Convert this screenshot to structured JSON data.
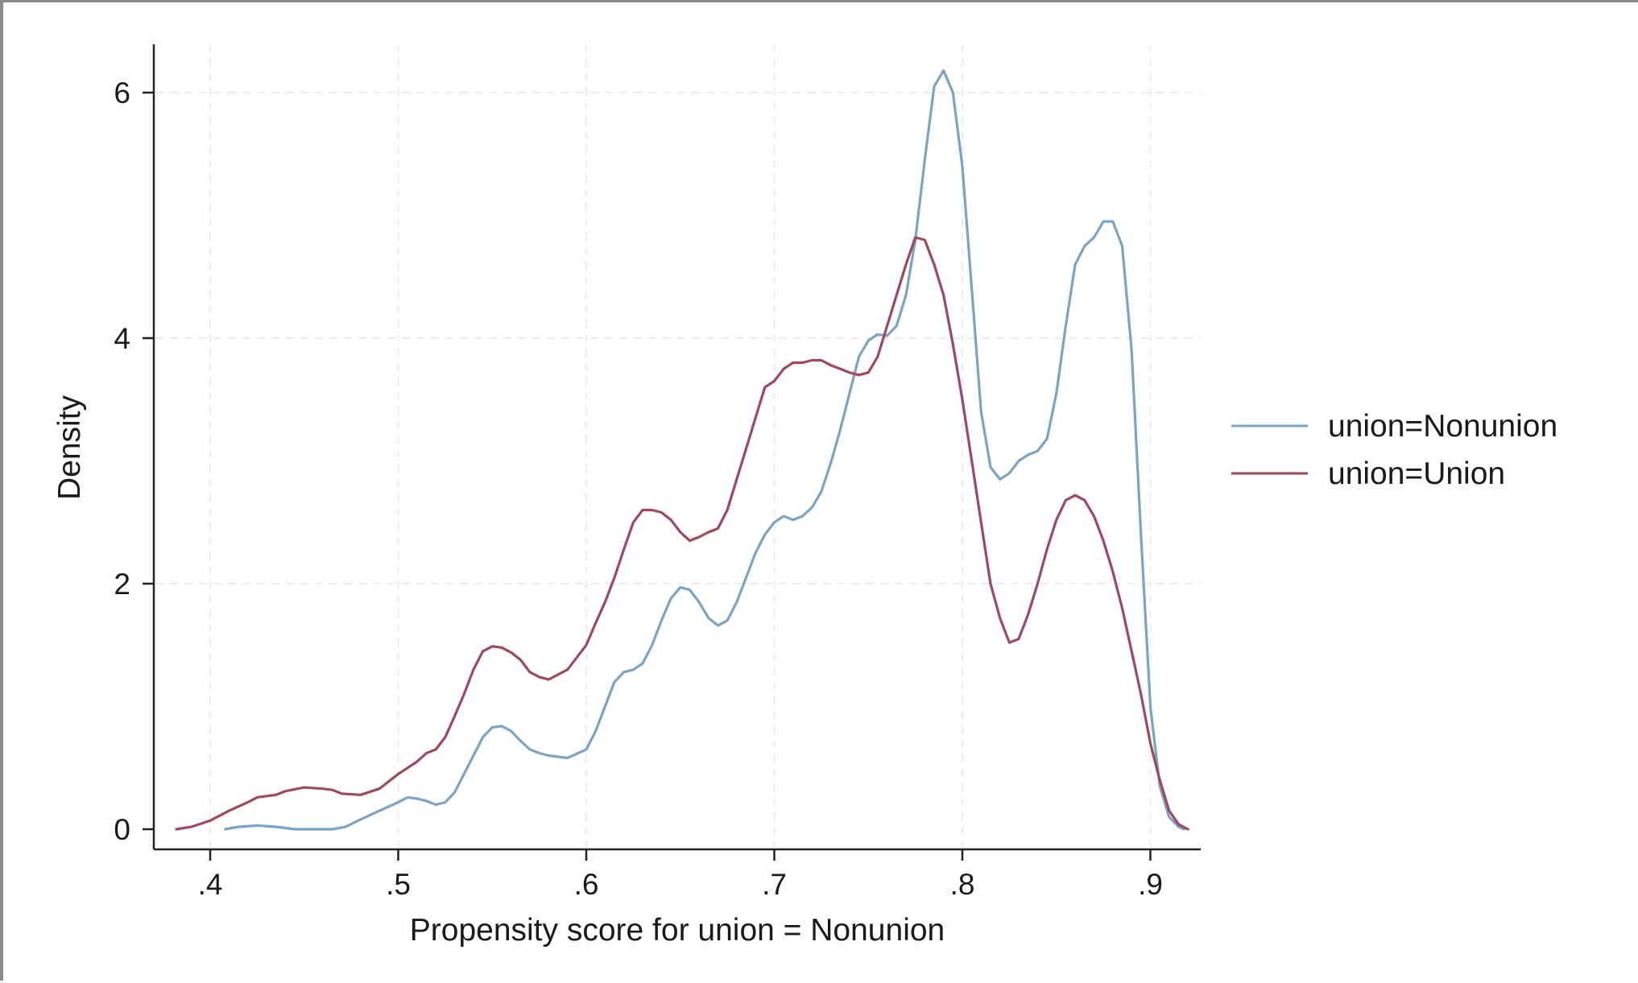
{
  "chart_data": {
    "type": "line",
    "title": "",
    "xlabel": "Propensity score for union = Nonunion",
    "ylabel": "Density",
    "xlim": [
      0.38,
      0.925
    ],
    "ylim": [
      0,
      6.3
    ],
    "x_ticks": [
      {
        "value": 0.4,
        "label": ".4"
      },
      {
        "value": 0.5,
        "label": ".5"
      },
      {
        "value": 0.6,
        "label": ".6"
      },
      {
        "value": 0.7,
        "label": ".7"
      },
      {
        "value": 0.8,
        "label": ".8"
      },
      {
        "value": 0.9,
        "label": ".9"
      }
    ],
    "y_ticks": [
      {
        "value": 0,
        "label": "0"
      },
      {
        "value": 2,
        "label": "2"
      },
      {
        "value": 4,
        "label": "4"
      },
      {
        "value": 6,
        "label": "6"
      }
    ],
    "grid": true,
    "legend_position": "right",
    "series": [
      {
        "name": "union=Nonunion",
        "color": "#7ba3c4",
        "points": [
          [
            0.408,
            0.0
          ],
          [
            0.415,
            0.02
          ],
          [
            0.425,
            0.03
          ],
          [
            0.435,
            0.02
          ],
          [
            0.445,
            0.0
          ],
          [
            0.455,
            0.0
          ],
          [
            0.465,
            0.0
          ],
          [
            0.472,
            0.02
          ],
          [
            0.48,
            0.08
          ],
          [
            0.49,
            0.15
          ],
          [
            0.5,
            0.22
          ],
          [
            0.505,
            0.26
          ],
          [
            0.51,
            0.25
          ],
          [
            0.515,
            0.23
          ],
          [
            0.52,
            0.2
          ],
          [
            0.525,
            0.22
          ],
          [
            0.53,
            0.3
          ],
          [
            0.535,
            0.45
          ],
          [
            0.54,
            0.6
          ],
          [
            0.545,
            0.75
          ],
          [
            0.55,
            0.83
          ],
          [
            0.555,
            0.84
          ],
          [
            0.56,
            0.8
          ],
          [
            0.565,
            0.72
          ],
          [
            0.57,
            0.65
          ],
          [
            0.575,
            0.62
          ],
          [
            0.58,
            0.6
          ],
          [
            0.59,
            0.58
          ],
          [
            0.6,
            0.65
          ],
          [
            0.605,
            0.8
          ],
          [
            0.61,
            1.0
          ],
          [
            0.615,
            1.2
          ],
          [
            0.62,
            1.28
          ],
          [
            0.625,
            1.3
          ],
          [
            0.63,
            1.35
          ],
          [
            0.635,
            1.5
          ],
          [
            0.64,
            1.7
          ],
          [
            0.645,
            1.88
          ],
          [
            0.65,
            1.97
          ],
          [
            0.655,
            1.95
          ],
          [
            0.66,
            1.85
          ],
          [
            0.665,
            1.72
          ],
          [
            0.67,
            1.66
          ],
          [
            0.675,
            1.7
          ],
          [
            0.68,
            1.85
          ],
          [
            0.685,
            2.05
          ],
          [
            0.69,
            2.25
          ],
          [
            0.695,
            2.4
          ],
          [
            0.7,
            2.5
          ],
          [
            0.705,
            2.55
          ],
          [
            0.71,
            2.52
          ],
          [
            0.715,
            2.55
          ],
          [
            0.72,
            2.62
          ],
          [
            0.725,
            2.75
          ],
          [
            0.73,
            2.98
          ],
          [
            0.735,
            3.25
          ],
          [
            0.74,
            3.55
          ],
          [
            0.745,
            3.85
          ],
          [
            0.75,
            3.98
          ],
          [
            0.755,
            4.03
          ],
          [
            0.76,
            4.02
          ],
          [
            0.765,
            4.1
          ],
          [
            0.77,
            4.35
          ],
          [
            0.775,
            4.8
          ],
          [
            0.78,
            5.45
          ],
          [
            0.785,
            6.05
          ],
          [
            0.79,
            6.18
          ],
          [
            0.795,
            6.0
          ],
          [
            0.8,
            5.4
          ],
          [
            0.805,
            4.4
          ],
          [
            0.81,
            3.4
          ],
          [
            0.815,
            2.95
          ],
          [
            0.82,
            2.85
          ],
          [
            0.825,
            2.9
          ],
          [
            0.83,
            3.0
          ],
          [
            0.835,
            3.05
          ],
          [
            0.84,
            3.08
          ],
          [
            0.845,
            3.18
          ],
          [
            0.85,
            3.55
          ],
          [
            0.855,
            4.1
          ],
          [
            0.86,
            4.6
          ],
          [
            0.865,
            4.75
          ],
          [
            0.87,
            4.82
          ],
          [
            0.875,
            4.95
          ],
          [
            0.88,
            4.95
          ],
          [
            0.885,
            4.75
          ],
          [
            0.89,
            3.9
          ],
          [
            0.895,
            2.4
          ],
          [
            0.9,
            1.0
          ],
          [
            0.905,
            0.35
          ],
          [
            0.91,
            0.1
          ],
          [
            0.915,
            0.02
          ],
          [
            0.918,
            0.0
          ]
        ]
      },
      {
        "name": "union=Union",
        "color": "#9e4a5c",
        "points": [
          [
            0.382,
            0.0
          ],
          [
            0.39,
            0.02
          ],
          [
            0.4,
            0.07
          ],
          [
            0.41,
            0.15
          ],
          [
            0.42,
            0.22
          ],
          [
            0.425,
            0.26
          ],
          [
            0.43,
            0.27
          ],
          [
            0.435,
            0.28
          ],
          [
            0.44,
            0.31
          ],
          [
            0.45,
            0.34
          ],
          [
            0.46,
            0.33
          ],
          [
            0.465,
            0.32
          ],
          [
            0.47,
            0.29
          ],
          [
            0.48,
            0.28
          ],
          [
            0.49,
            0.33
          ],
          [
            0.5,
            0.45
          ],
          [
            0.51,
            0.55
          ],
          [
            0.515,
            0.62
          ],
          [
            0.52,
            0.65
          ],
          [
            0.525,
            0.75
          ],
          [
            0.53,
            0.92
          ],
          [
            0.535,
            1.1
          ],
          [
            0.54,
            1.3
          ],
          [
            0.545,
            1.45
          ],
          [
            0.55,
            1.49
          ],
          [
            0.555,
            1.48
          ],
          [
            0.56,
            1.44
          ],
          [
            0.565,
            1.38
          ],
          [
            0.57,
            1.28
          ],
          [
            0.575,
            1.24
          ],
          [
            0.58,
            1.22
          ],
          [
            0.59,
            1.3
          ],
          [
            0.6,
            1.5
          ],
          [
            0.605,
            1.68
          ],
          [
            0.61,
            1.85
          ],
          [
            0.615,
            2.05
          ],
          [
            0.62,
            2.28
          ],
          [
            0.625,
            2.5
          ],
          [
            0.63,
            2.6
          ],
          [
            0.635,
            2.6
          ],
          [
            0.64,
            2.58
          ],
          [
            0.645,
            2.52
          ],
          [
            0.65,
            2.42
          ],
          [
            0.655,
            2.35
          ],
          [
            0.66,
            2.38
          ],
          [
            0.665,
            2.42
          ],
          [
            0.67,
            2.45
          ],
          [
            0.675,
            2.6
          ],
          [
            0.68,
            2.85
          ],
          [
            0.685,
            3.1
          ],
          [
            0.69,
            3.35
          ],
          [
            0.695,
            3.6
          ],
          [
            0.7,
            3.65
          ],
          [
            0.705,
            3.75
          ],
          [
            0.71,
            3.8
          ],
          [
            0.715,
            3.8
          ],
          [
            0.72,
            3.82
          ],
          [
            0.725,
            3.82
          ],
          [
            0.73,
            3.78
          ],
          [
            0.735,
            3.75
          ],
          [
            0.74,
            3.72
          ],
          [
            0.745,
            3.7
          ],
          [
            0.75,
            3.72
          ],
          [
            0.755,
            3.85
          ],
          [
            0.76,
            4.1
          ],
          [
            0.765,
            4.35
          ],
          [
            0.77,
            4.6
          ],
          [
            0.775,
            4.82
          ],
          [
            0.78,
            4.8
          ],
          [
            0.785,
            4.6
          ],
          [
            0.79,
            4.35
          ],
          [
            0.795,
            3.95
          ],
          [
            0.8,
            3.5
          ],
          [
            0.805,
            3.0
          ],
          [
            0.81,
            2.5
          ],
          [
            0.815,
            2.0
          ],
          [
            0.82,
            1.72
          ],
          [
            0.825,
            1.52
          ],
          [
            0.83,
            1.55
          ],
          [
            0.835,
            1.75
          ],
          [
            0.84,
            2.0
          ],
          [
            0.845,
            2.28
          ],
          [
            0.85,
            2.52
          ],
          [
            0.855,
            2.68
          ],
          [
            0.86,
            2.72
          ],
          [
            0.865,
            2.68
          ],
          [
            0.87,
            2.55
          ],
          [
            0.875,
            2.35
          ],
          [
            0.88,
            2.1
          ],
          [
            0.885,
            1.8
          ],
          [
            0.89,
            1.45
          ],
          [
            0.895,
            1.1
          ],
          [
            0.9,
            0.7
          ],
          [
            0.905,
            0.4
          ],
          [
            0.91,
            0.15
          ],
          [
            0.915,
            0.04
          ],
          [
            0.92,
            0.0
          ]
        ]
      }
    ]
  }
}
